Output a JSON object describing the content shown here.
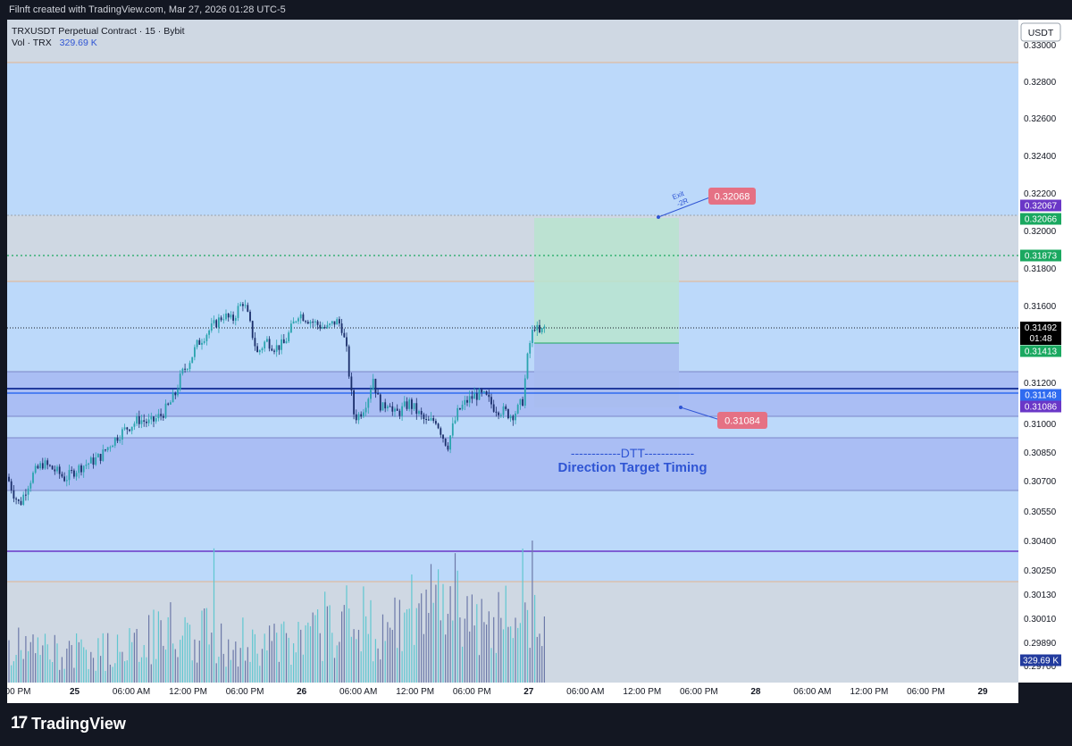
{
  "header": {
    "credit": "Filnft created with TradingView.com, Mar 27, 2026 01:28 UTC-5"
  },
  "legend": {
    "title": "TRXUSDT Perpetual Contract · 15 · Bybit",
    "vol_label": "Vol · TRX",
    "vol_value": "329.69 K"
  },
  "currency_button": "USDT",
  "brand": {
    "name": "TradingView",
    "logo_glyph": "17"
  },
  "colors": {
    "background": "#131722",
    "pane": "#bcd9fa",
    "zone_gray": "#cfd8e3",
    "zone_violet": "#a7b8f2",
    "up_candle": "#2aa4ae",
    "down_candle": "#1a2e6a",
    "support_line": "#223b9e",
    "profit_box": "#b9e4cf",
    "loss_box": "#a8bdf0",
    "label_red": "#e57184",
    "label_green": "#1aa860",
    "label_purple": "#6a37c7",
    "label_blue": "#2f6bf0",
    "annotation_text": "#2f55d4"
  },
  "axis": {
    "price_ticks": [
      "0.33000",
      "0.32800",
      "0.32600",
      "0.32400",
      "0.32200",
      "0.32000",
      "0.31800",
      "0.31600",
      "0.31200",
      "0.31000",
      "0.30850",
      "0.30700",
      "0.30550",
      "0.30400",
      "0.30250",
      "0.30130",
      "0.30010",
      "0.29890",
      "0.29700"
    ],
    "time_ticks": [
      "00 PM",
      "25",
      "06:00 AM",
      "12:00 PM",
      "06:00 PM",
      "26",
      "06:00 AM",
      "12:00 PM",
      "06:00 PM",
      "27",
      "06:00 AM",
      "12:00 PM",
      "06:00 PM",
      "28",
      "06:00 AM",
      "12:00 PM",
      "06:00 PM",
      "29"
    ],
    "bold_time_ticks": [
      "25",
      "26",
      "27",
      "28",
      "29"
    ]
  },
  "price_badges": [
    {
      "text": "0.32067",
      "color": "#6a37c7"
    },
    {
      "text": "0.32066",
      "color": "#1aa860"
    },
    {
      "text": "0.31873",
      "color": "#1aa860"
    },
    {
      "text": "0.31492",
      "sub": "01:48",
      "color": "#000000"
    },
    {
      "text": "0.31413",
      "color": "#1aa860"
    },
    {
      "text": "0.31148",
      "color": "#2f6bf0"
    },
    {
      "text": "0.31086",
      "color": "#6a37c7"
    },
    {
      "text": "329.69 K",
      "color": "#223b9e"
    }
  ],
  "annotations": {
    "target_label": "0.32068",
    "stop_label": "0.31084",
    "exit_text": "Exit",
    "exit_sub": "-2R",
    "dtt_line": "------------DTT------------",
    "dtt_caption": "Direction Target Timing"
  },
  "chart_data": {
    "type": "candlestick",
    "symbol": "TRXUSDT Perpetual Contract",
    "interval": "15",
    "exchange": "Bybit",
    "ylim": [
      0.297,
      0.3305
    ],
    "price_path": [
      [
        0,
        0.3072
      ],
      [
        8,
        0.3063
      ],
      [
        14,
        0.3058
      ],
      [
        22,
        0.3067
      ],
      [
        30,
        0.3074
      ],
      [
        40,
        0.3079
      ],
      [
        55,
        0.3075
      ],
      [
        65,
        0.3071
      ],
      [
        75,
        0.3075
      ],
      [
        85,
        0.3078
      ],
      [
        95,
        0.308
      ],
      [
        105,
        0.3083
      ],
      [
        115,
        0.3089
      ],
      [
        125,
        0.3094
      ],
      [
        135,
        0.3098
      ],
      [
        148,
        0.3102
      ],
      [
        160,
        0.31
      ],
      [
        172,
        0.3104
      ],
      [
        180,
        0.3108
      ],
      [
        188,
        0.3114
      ],
      [
        195,
        0.3124
      ],
      [
        205,
        0.3132
      ],
      [
        213,
        0.314
      ],
      [
        222,
        0.3145
      ],
      [
        232,
        0.315
      ],
      [
        242,
        0.3155
      ],
      [
        252,
        0.3152
      ],
      [
        258,
        0.3158
      ],
      [
        264,
        0.3162
      ],
      [
        268,
        0.3157
      ],
      [
        274,
        0.3146
      ],
      [
        280,
        0.3135
      ],
      [
        290,
        0.3142
      ],
      [
        300,
        0.3138
      ],
      [
        310,
        0.314
      ],
      [
        318,
        0.3148
      ],
      [
        326,
        0.3156
      ],
      [
        333,
        0.3154
      ],
      [
        340,
        0.3152
      ],
      [
        348,
        0.315
      ],
      [
        358,
        0.3148
      ],
      [
        368,
        0.3152
      ],
      [
        374,
        0.315
      ],
      [
        380,
        0.3136
      ],
      [
        385,
        0.3115
      ],
      [
        388,
        0.3105
      ],
      [
        392,
        0.3103
      ],
      [
        398,
        0.3107
      ],
      [
        404,
        0.3113
      ],
      [
        410,
        0.3123
      ],
      [
        414,
        0.3113
      ],
      [
        420,
        0.3107
      ],
      [
        428,
        0.3112
      ],
      [
        432,
        0.3104
      ],
      [
        440,
        0.3106
      ],
      [
        450,
        0.311
      ],
      [
        460,
        0.3105
      ],
      [
        470,
        0.31
      ],
      [
        480,
        0.3102
      ],
      [
        488,
        0.3093
      ],
      [
        493,
        0.3088
      ],
      [
        498,
        0.3097
      ],
      [
        505,
        0.3106
      ],
      [
        515,
        0.3111
      ],
      [
        525,
        0.3114
      ],
      [
        535,
        0.3113
      ],
      [
        545,
        0.3108
      ],
      [
        555,
        0.3106
      ],
      [
        565,
        0.3104
      ],
      [
        572,
        0.3107
      ],
      [
        578,
        0.3112
      ],
      [
        581,
        0.3128
      ],
      [
        585,
        0.314
      ],
      [
        590,
        0.315
      ],
      [
        596,
        0.3145
      ],
      [
        602,
        0.3149
      ]
    ],
    "volume_path": [
      [
        0,
        150000
      ],
      [
        100,
        120000
      ],
      [
        190,
        220000
      ],
      [
        250,
        180000
      ],
      [
        330,
        160000
      ],
      [
        382,
        310000
      ],
      [
        420,
        210000
      ],
      [
        500,
        390000
      ],
      [
        540,
        180000
      ],
      [
        582,
        440000
      ],
      [
        595,
        300000
      ],
      [
        602,
        120000
      ]
    ],
    "volume_current": "329.69 K",
    "levels": {
      "range_top": 0.3293,
      "upper_zone": [
        0.31736,
        0.32066
      ],
      "target": 0.32068,
      "target_dotted": 0.31873,
      "current_price": 0.31492,
      "entry": 0.31413,
      "mid_zone": [
        0.3105,
        0.3127
      ],
      "support": 0.31148,
      "stop": 0.31084,
      "lower_zone": [
        0.30638,
        0.30912
      ],
      "low_line": 0.30355,
      "volume_pane_top": 0.3018
    }
  }
}
